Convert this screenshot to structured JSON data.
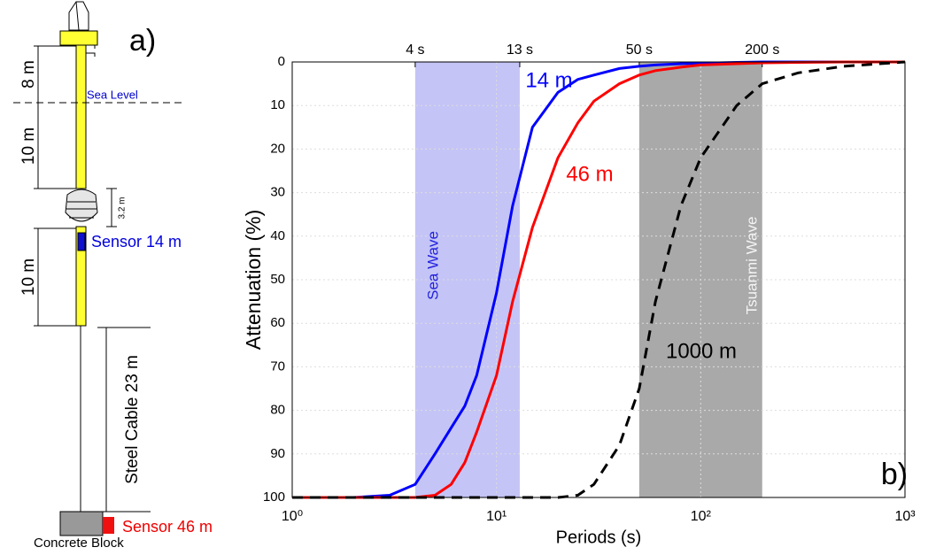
{
  "diagram": {
    "label": "a)",
    "above_sea": "8 m",
    "sea_level": "Sea Level",
    "below_sea": "10 m",
    "float": "3.2 m",
    "sensor_top": "Sensor 14 m",
    "lower_pole": "10 m",
    "cable": "Steel Cable 23 m",
    "sensor_bottom": "Sensor 46 m",
    "block": "Concrete Block"
  },
  "chart_data": {
    "type": "line",
    "annotation": "b)",
    "xlabel": "Periods (s)",
    "ylabel": "Attenuation (%)",
    "xscale": "log",
    "yinverted": true,
    "grid": true,
    "xlim": [
      1,
      1000
    ],
    "ylim": [
      0,
      100
    ],
    "xticks": [
      {
        "value": 1,
        "label": "10⁰"
      },
      {
        "value": 10,
        "label": "10¹"
      },
      {
        "value": 100,
        "label": "10²"
      },
      {
        "value": 1000,
        "label": "10³"
      }
    ],
    "yticks": [
      0,
      10,
      20,
      30,
      40,
      50,
      60,
      70,
      80,
      90,
      100
    ],
    "x2ticks": [
      {
        "value": 4,
        "label": "4 s"
      },
      {
        "value": 13,
        "label": "13 s"
      },
      {
        "value": 50,
        "label": "50 s"
      },
      {
        "value": 200,
        "label": "200 s"
      }
    ],
    "bands": [
      {
        "label": "Sea Wave",
        "from": 4,
        "to": 13,
        "color": "#c4c4f6"
      },
      {
        "label": "Tsuanmi Wave",
        "from": 50,
        "to": 200,
        "color": "#a9a9a9"
      }
    ],
    "x": [
      1,
      2,
      3,
      4,
      5,
      6,
      7,
      8,
      10,
      12,
      15,
      20,
      25,
      30,
      40,
      50,
      60,
      80,
      100,
      150,
      200,
      300,
      500,
      1000
    ],
    "series": [
      {
        "name": "14 m",
        "color": "#0000ff",
        "dash": false,
        "values": [
          100,
          100,
          99.5,
          97,
          90,
          84,
          79,
          72,
          53,
          33,
          15,
          7,
          4,
          3,
          1.5,
          1,
          0.7,
          0.4,
          0.3,
          0.1,
          0,
          0,
          0,
          0
        ]
      },
      {
        "name": "46 m",
        "color": "#ff0000",
        "dash": false,
        "values": [
          100,
          100,
          100,
          100,
          99.5,
          97,
          92,
          85,
          72,
          55,
          38,
          22,
          14,
          9,
          5,
          3,
          2,
          1.2,
          0.7,
          0.4,
          0.2,
          0.1,
          0,
          0
        ]
      },
      {
        "name": "1000 m",
        "color": "#000000",
        "dash": true,
        "values": [
          100,
          100,
          100,
          100,
          100,
          100,
          100,
          100,
          100,
          100,
          100,
          100,
          99.5,
          97,
          88,
          75,
          55,
          33,
          22,
          10,
          5,
          2.5,
          1,
          0
        ]
      }
    ]
  }
}
